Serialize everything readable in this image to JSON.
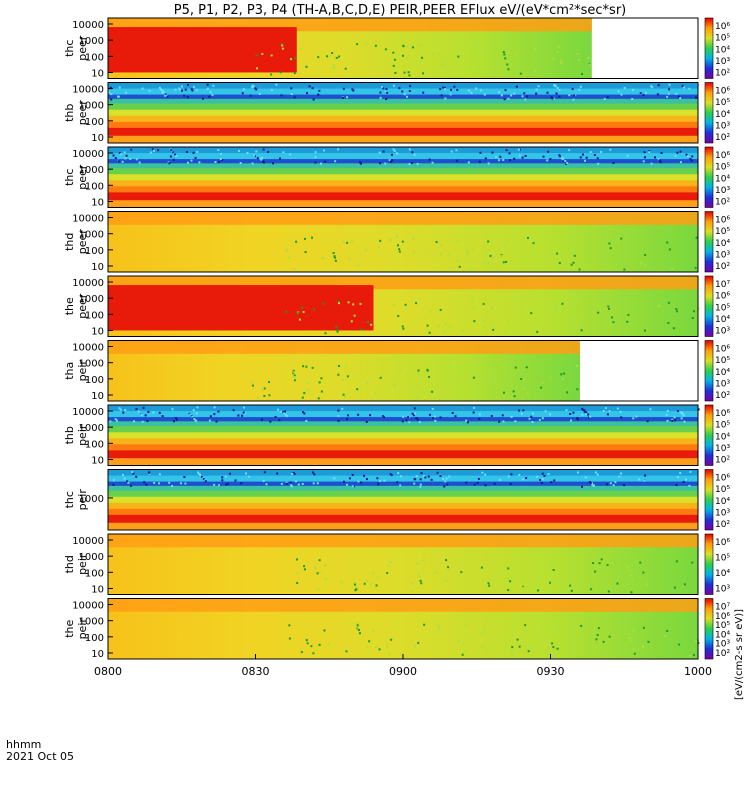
{
  "title": "P5, P1, P2, P3, P4 (TH-A,B,C,D,E) PEIR,PEER EFlux eV/(eV*cm²*sec*sr)",
  "colorbar_unit_label": "[eV/(cm2-s sr eV)]",
  "colorbar_colors": [
    "#7a00a8",
    "#1f2fd8",
    "#00b4e8",
    "#2ad04c",
    "#dede1e",
    "#ff9e0a",
    "#e80000"
  ],
  "chart_data": {
    "type": "heatmap",
    "x_axis": {
      "ticks": [
        "0800",
        "0830",
        "0900",
        "0930",
        "1000"
      ],
      "range": [
        "08:00",
        "10:00"
      ],
      "label_left": "hhmm",
      "date": "2021 Oct 05"
    },
    "y_scale": "log",
    "y_ticks": [
      "10",
      "100",
      "1000",
      "10000"
    ],
    "panels": [
      {
        "name": "thc peer",
        "label1": "thc",
        "label2": "peer",
        "yticks": [
          "10000",
          "1000",
          "100",
          "10"
        ],
        "colorbar": [
          "10⁶",
          "10⁵",
          "10⁴",
          "10³",
          "10²"
        ],
        "data_end": 0.82,
        "base": "green-yellow",
        "hot_region": [
          0.0,
          0.32
        ]
      },
      {
        "name": "thb peer",
        "label1": "thb",
        "label2": "peer",
        "yticks": [
          "10000",
          "1000",
          "100",
          "10"
        ],
        "colorbar": [
          "10⁶",
          "10⁵",
          "10⁴",
          "10³",
          "10²"
        ],
        "data_end": 1.0,
        "base": "banded"
      },
      {
        "name": "thc peer",
        "label1": "thc",
        "label2": "peer",
        "yticks": [
          "10000",
          "1000",
          "100",
          "10"
        ],
        "colorbar": [
          "10⁶",
          "10⁵",
          "10⁴",
          "10³",
          "10²"
        ],
        "data_end": 1.0,
        "base": "banded"
      },
      {
        "name": "thd peer",
        "label1": "thd",
        "label2": "peer",
        "yticks": [
          "10000",
          "1000",
          "100",
          "10"
        ],
        "colorbar": [
          "10⁶",
          "10⁵",
          "10⁴",
          "10³",
          "10²"
        ],
        "data_end": 1.0,
        "base": "green-yellow"
      },
      {
        "name": "the peer",
        "label1": "the",
        "label2": "peer",
        "yticks": [
          "10000",
          "1000",
          "100",
          "10"
        ],
        "colorbar": [
          "10⁷",
          "10⁶",
          "10⁵",
          "10⁴",
          "10³"
        ],
        "data_end": 1.0,
        "base": "green-yellow",
        "hot_region": [
          0.0,
          0.45
        ]
      },
      {
        "name": "tha peir",
        "label1": "tha",
        "label2": "peir",
        "yticks": [
          "10000",
          "1000",
          "100",
          "10"
        ],
        "colorbar": [
          "10⁶",
          "10⁵",
          "10⁴",
          "10³",
          "10²"
        ],
        "data_end": 0.8,
        "base": "green-yellow"
      },
      {
        "name": "thb peir",
        "label1": "thb",
        "label2": "peir",
        "yticks": [
          "10000",
          "1000",
          "100",
          "10"
        ],
        "colorbar": [
          "10⁶",
          "10⁵",
          "10⁴",
          "10³",
          "10²"
        ],
        "data_end": 1.0,
        "base": "banded"
      },
      {
        "name": "thc peir",
        "label1": "thc",
        "label2": "peir",
        "yticks": [
          "1000"
        ],
        "colorbar": [
          "10⁶",
          "10⁵",
          "10⁴",
          "10³",
          "10²"
        ],
        "data_end": 1.0,
        "base": "banded"
      },
      {
        "name": "thd peir",
        "label1": "thd",
        "label2": "peir",
        "yticks": [
          "10000",
          "1000",
          "100",
          "10"
        ],
        "colorbar": [
          "10⁶",
          "10⁵",
          "10⁴",
          "10³"
        ],
        "data_end": 1.0,
        "base": "green-yellow"
      },
      {
        "name": "the peir",
        "label1": "the",
        "label2": "peir",
        "yticks": [
          "10000",
          "1000",
          "100",
          "10"
        ],
        "colorbar": [
          "10⁷",
          "10⁶",
          "10⁵",
          "10⁴",
          "10³",
          "10²"
        ],
        "data_end": 1.0,
        "base": "green-yellow"
      }
    ]
  }
}
